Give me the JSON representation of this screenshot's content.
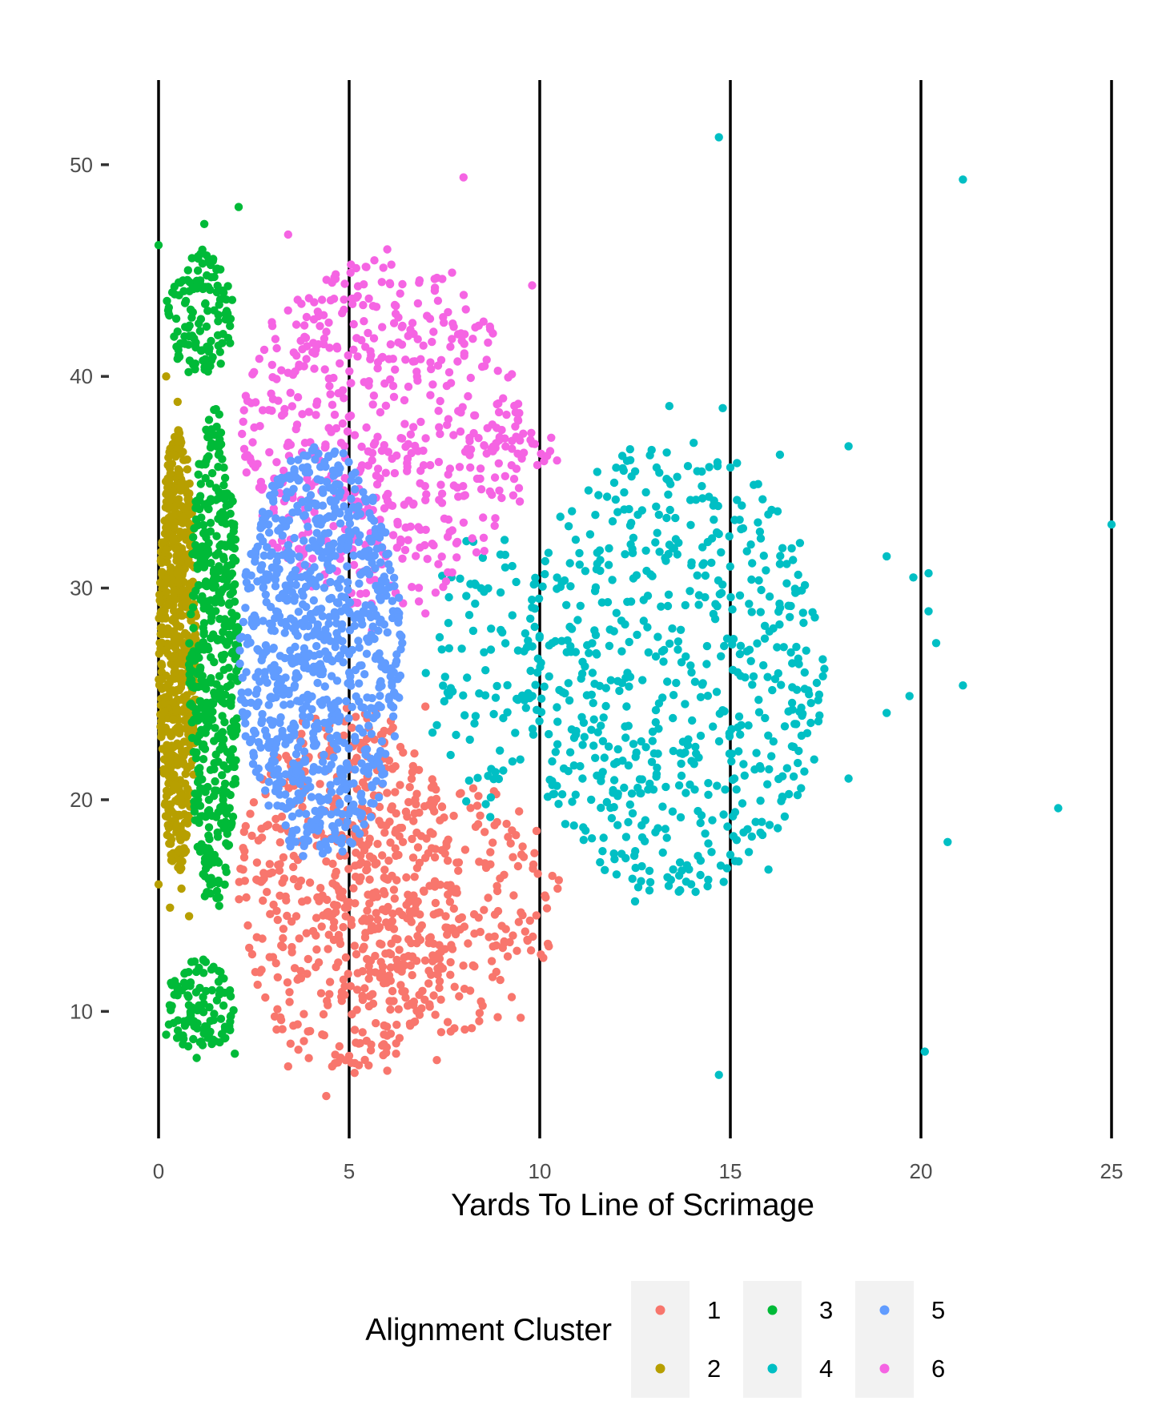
{
  "chart_data": {
    "type": "scatter",
    "title": "",
    "xlabel": "Yards To Line of Scrimage",
    "ylabel": "",
    "xlim": [
      0,
      25
    ],
    "ylim": [
      4,
      54
    ],
    "x_ticks": [
      "0",
      "5",
      "10",
      "15",
      "20",
      "25"
    ],
    "y_ticks": [
      "10",
      "20",
      "30",
      "40",
      "50"
    ],
    "y_tick_values": [
      10,
      20,
      30,
      40,
      50
    ],
    "vertical_reference_lines": [
      0,
      5,
      10,
      15,
      20,
      25
    ],
    "grid": false,
    "legend": {
      "title": "Alignment Cluster",
      "position": "bottom",
      "items": [
        {
          "label": "1",
          "color": "#F8766D"
        },
        {
          "label": "2",
          "color": "#B79F00"
        },
        {
          "label": "3",
          "color": "#00BA38"
        },
        {
          "label": "4",
          "color": "#00BFC4"
        },
        {
          "label": "5",
          "color": "#619CFF"
        },
        {
          "label": "6",
          "color": "#F564E3"
        }
      ]
    },
    "series": [
      {
        "name": "1",
        "color": "#F8766D",
        "clusters": [
          {
            "x_range": [
              2.1,
              7.8
            ],
            "y_range": [
              7,
              24.5
            ],
            "count": 520
          },
          {
            "x_range": [
              4.5,
              10.5
            ],
            "y_range": [
              9,
              21
            ],
            "count": 260
          }
        ],
        "points": [
          [
            3.4,
            7.4
          ],
          [
            4.4,
            6.0
          ],
          [
            6.0,
            7.2
          ],
          [
            7.3,
            7.7
          ],
          [
            9.5,
            9.7
          ],
          [
            10.5,
            16.2
          ],
          [
            7.0,
            24.4
          ],
          [
            5.0,
            7.9
          ]
        ]
      },
      {
        "name": "2",
        "color": "#B79F00",
        "clusters": [
          {
            "x_range": [
              0.0,
              1.0
            ],
            "y_range": [
              16.5,
              37.5
            ],
            "count": 650
          }
        ],
        "points": [
          [
            0.2,
            40.0
          ],
          [
            0.5,
            38.8
          ],
          [
            0.6,
            15.8
          ],
          [
            0.3,
            14.9
          ],
          [
            0.8,
            14.5
          ],
          [
            0.0,
            16.0
          ]
        ]
      },
      {
        "name": "3",
        "color": "#00BA38",
        "clusters": [
          {
            "x_range": [
              0.8,
              2.1
            ],
            "y_range": [
              14.5,
              38.5
            ],
            "count": 470
          },
          {
            "x_range": [
              0.2,
              2.0
            ],
            "y_range": [
              40,
              46
            ],
            "count": 130
          },
          {
            "x_range": [
              0.2,
              2.0
            ],
            "y_range": [
              8,
              12.5
            ],
            "count": 110
          }
        ],
        "points": [
          [
            2.1,
            48.0
          ],
          [
            1.2,
            47.2
          ],
          [
            0.0,
            46.2
          ],
          [
            1.0,
            7.8
          ],
          [
            2.0,
            8.0
          ],
          [
            0.2,
            8.9
          ]
        ]
      },
      {
        "name": "4",
        "color": "#00BFC4",
        "clusters": [
          {
            "x_range": [
              9.5,
              17.5
            ],
            "y_range": [
              15.5,
              37
            ],
            "count": 640
          },
          {
            "x_range": [
              7.0,
              10.0
            ],
            "y_range": [
              19,
              33
            ],
            "count": 90
          }
        ],
        "points": [
          [
            14.7,
            51.3
          ],
          [
            21.1,
            49.3
          ],
          [
            25.0,
            33.0
          ],
          [
            23.6,
            19.6
          ],
          [
            20.1,
            8.1
          ],
          [
            14.7,
            7.0
          ],
          [
            13.4,
            38.6
          ],
          [
            14.8,
            38.5
          ],
          [
            20.7,
            18.0
          ],
          [
            21.1,
            25.4
          ],
          [
            19.7,
            24.9
          ],
          [
            20.2,
            28.9
          ],
          [
            20.4,
            27.4
          ],
          [
            19.1,
            31.5
          ],
          [
            19.8,
            30.5
          ],
          [
            20.2,
            30.7
          ],
          [
            18.1,
            36.7
          ],
          [
            16.3,
            36.3
          ],
          [
            19.1,
            24.1
          ],
          [
            18.1,
            21.0
          ],
          [
            17.2,
            21.9
          ],
          [
            15.3,
            33.9
          ],
          [
            15.0,
            35.7
          ],
          [
            16.0,
            16.7
          ],
          [
            15.0,
            17.4
          ],
          [
            12.5,
            15.2
          ]
        ]
      },
      {
        "name": "5",
        "color": "#619CFF",
        "clusters": [
          {
            "x_range": [
              2.1,
              6.4
            ],
            "y_range": [
              17,
              36.8
            ],
            "count": 900
          }
        ],
        "points": []
      },
      {
        "name": "6",
        "color": "#F564E3",
        "clusters": [
          {
            "x_range": [
              2.1,
              9.5
            ],
            "y_range": [
              29,
              45.5
            ],
            "count": 560
          },
          {
            "x_range": [
              8.0,
              10.6
            ],
            "y_range": [
              34,
              37.5
            ],
            "count": 35
          }
        ],
        "points": [
          [
            8.0,
            49.4
          ],
          [
            3.4,
            46.7
          ],
          [
            6.0,
            46.0
          ],
          [
            9.8,
            44.3
          ],
          [
            7.7,
            44.9
          ],
          [
            5.6,
            28.0
          ],
          [
            7.0,
            28.8
          ],
          [
            10.3,
            37.1
          ]
        ]
      }
    ]
  }
}
